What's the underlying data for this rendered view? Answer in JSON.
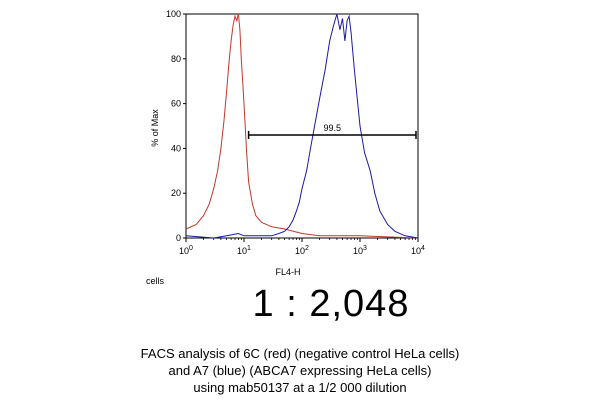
{
  "chart_data": {
    "type": "line",
    "xlabel": "FL4-H",
    "ylabel": "% of Max",
    "xscale": "log",
    "xlim": [
      1,
      10000
    ],
    "ylim": [
      0,
      100
    ],
    "y_ticks": [
      {
        "value": 0,
        "label": "0"
      },
      {
        "value": 20,
        "label": "20"
      },
      {
        "value": 40,
        "label": "40"
      },
      {
        "value": 60,
        "label": "60"
      },
      {
        "value": 80,
        "label": "80"
      },
      {
        "value": 100,
        "label": "100"
      }
    ],
    "x_ticks": [
      {
        "value": 1,
        "base": "10",
        "exp": "0"
      },
      {
        "value": 10,
        "base": "10",
        "exp": "1"
      },
      {
        "value": 100,
        "base": "10",
        "exp": "2"
      },
      {
        "value": 1000,
        "base": "10",
        "exp": "3"
      },
      {
        "value": 10000,
        "base": "10",
        "exp": "4"
      }
    ],
    "gate": {
      "label": "99.5",
      "x_start": 12,
      "x_end": 10000,
      "y": 46
    },
    "grid": false,
    "series": [
      {
        "color": "#c0392b",
        "points": [
          [
            1,
            4
          ],
          [
            1.5,
            6
          ],
          [
            2,
            10
          ],
          [
            2.5,
            15
          ],
          [
            3,
            22
          ],
          [
            3.5,
            30
          ],
          [
            4,
            40
          ],
          [
            4.5,
            52
          ],
          [
            5,
            65
          ],
          [
            5.5,
            78
          ],
          [
            6,
            88
          ],
          [
            6.5,
            95
          ],
          [
            7,
            99
          ],
          [
            7.5,
            97
          ],
          [
            8,
            100
          ],
          [
            8.5,
            93
          ],
          [
            9,
            80
          ],
          [
            10,
            60
          ],
          [
            11,
            40
          ],
          [
            12,
            25
          ],
          [
            14,
            15
          ],
          [
            16,
            10
          ],
          [
            20,
            7
          ],
          [
            30,
            5
          ],
          [
            50,
            4
          ],
          [
            100,
            2
          ],
          [
            200,
            1
          ],
          [
            1000,
            1
          ],
          [
            10000,
            0
          ]
        ]
      },
      {
        "color": "#1a1aa6",
        "points": [
          [
            1,
            1
          ],
          [
            3,
            0
          ],
          [
            5,
            1
          ],
          [
            8,
            2
          ],
          [
            10,
            1
          ],
          [
            20,
            1
          ],
          [
            30,
            1
          ],
          [
            40,
            2
          ],
          [
            50,
            3
          ],
          [
            60,
            5
          ],
          [
            70,
            8
          ],
          [
            80,
            12
          ],
          [
            90,
            16
          ],
          [
            100,
            22
          ],
          [
            120,
            30
          ],
          [
            140,
            40
          ],
          [
            170,
            52
          ],
          [
            200,
            62
          ],
          [
            250,
            75
          ],
          [
            300,
            88
          ],
          [
            350,
            95
          ],
          [
            400,
            100
          ],
          [
            450,
            93
          ],
          [
            500,
            98
          ],
          [
            550,
            88
          ],
          [
            600,
            97
          ],
          [
            650,
            99
          ],
          [
            700,
            92
          ],
          [
            800,
            75
          ],
          [
            900,
            62
          ],
          [
            1000,
            50
          ],
          [
            1200,
            38
          ],
          [
            1500,
            30
          ],
          [
            1800,
            20
          ],
          [
            2200,
            12
          ],
          [
            3000,
            6
          ],
          [
            4000,
            3
          ],
          [
            6000,
            1
          ],
          [
            10000,
            0
          ]
        ]
      }
    ]
  },
  "cells_label": "cells",
  "ratio_text": "1 : 2,048",
  "caption": [
    "FACS analysis of 6C (red) (negative control HeLa cells)",
    "and A7 (blue) (ABCA7 expressing HeLa cells)",
    "using mab50137 at a 1/2 000 dilution"
  ]
}
